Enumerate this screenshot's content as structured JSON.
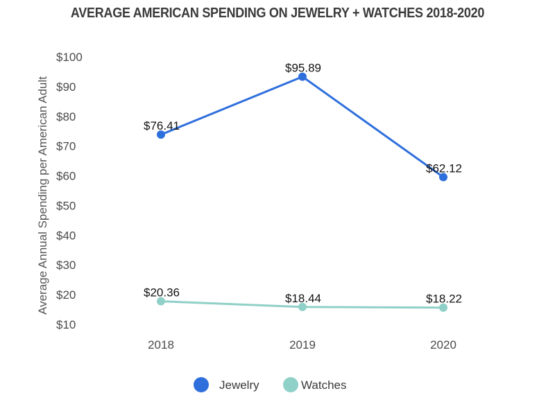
{
  "chart_data": {
    "type": "line",
    "title": "AVERAGE AMERICAN SPENDING ON JEWELRY + WATCHES 2018-2020",
    "xlabel": "",
    "ylabel": "Average Annual Spending per American Adult",
    "categories": [
      "2018",
      "2019",
      "2020"
    ],
    "yticks": [
      10,
      20,
      30,
      40,
      50,
      60,
      70,
      80,
      90,
      100
    ],
    "ytick_labels": [
      "$10",
      "$20",
      "$30",
      "$40",
      "$50",
      "$60",
      "$70",
      "$80",
      "$90",
      "$100"
    ],
    "ylim": [
      10,
      100
    ],
    "grid": false,
    "legend_position": "bottom-center",
    "series": [
      {
        "name": "Jewelry",
        "color": "#2f6fdc",
        "values": [
          76.41,
          95.89,
          62.12
        ],
        "labels": [
          "$76.41",
          "$95.89",
          "$62.12"
        ]
      },
      {
        "name": "Watches",
        "color": "#8fd0c8",
        "values": [
          20.36,
          18.44,
          18.22
        ],
        "labels": [
          "$20.36",
          "$18.44",
          "$18.22"
        ]
      }
    ]
  }
}
